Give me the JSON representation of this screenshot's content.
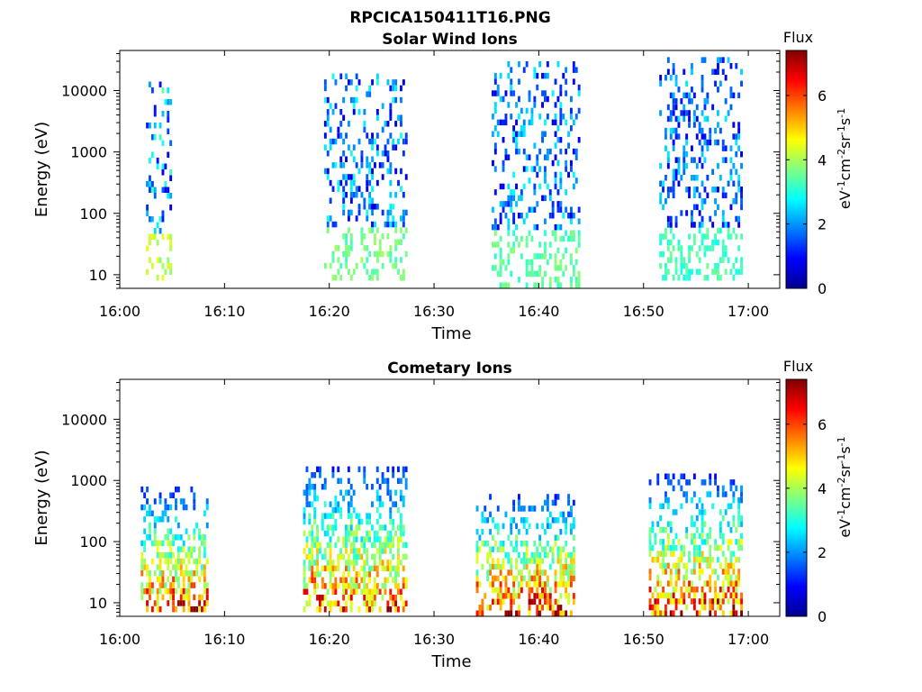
{
  "figure_title": "RPCICA150411T16.PNG",
  "colors": {
    "jet": [
      "#00008f",
      "#0000ff",
      "#0080ff",
      "#00ffff",
      "#80ff80",
      "#ffff00",
      "#ff8000",
      "#ff0000",
      "#800000"
    ]
  },
  "chart_data": [
    {
      "type": "heatmap",
      "title": "Solar Wind Ions",
      "xlabel": "Time",
      "ylabel": "Energy (eV)",
      "x_ticks": [
        "16:00",
        "16:10",
        "16:20",
        "16:30",
        "16:40",
        "16:50",
        "17:00"
      ],
      "y_ticks": [
        "10",
        "100",
        "1000",
        "10000"
      ],
      "y_scale": "log",
      "xlim_minutes": [
        0,
        63
      ],
      "ylim": [
        6,
        45000
      ],
      "colorbar": {
        "title": "Flux",
        "label": "eV-1cm-2sr-1s-1",
        "ticks": [
          "0",
          "2",
          "4",
          "6"
        ],
        "range": [
          0,
          7.4
        ]
      },
      "bursts": [
        {
          "t_start": 2.5,
          "t_end": 5.0,
          "e_min": 8,
          "e_max": 14000,
          "peak_flux": 4.6
        },
        {
          "t_start": 19.5,
          "t_end": 27.5,
          "e_min": 8,
          "e_max": 19000,
          "peak_flux": 4.0
        },
        {
          "t_start": 35.5,
          "t_end": 44.0,
          "e_min": 6,
          "e_max": 30000,
          "peak_flux": 3.8
        },
        {
          "t_start": 51.5,
          "t_end": 59.5,
          "e_min": 8,
          "e_max": 35000,
          "peak_flux": 3.6
        }
      ]
    },
    {
      "type": "heatmap",
      "title": "Cometary Ions",
      "xlabel": "Time",
      "ylabel": "Energy (eV)",
      "x_ticks": [
        "16:00",
        "16:10",
        "16:20",
        "16:30",
        "16:40",
        "16:50",
        "17:00"
      ],
      "y_ticks": [
        "10",
        "100",
        "1000",
        "10000"
      ],
      "y_scale": "log",
      "xlim_minutes": [
        0,
        63
      ],
      "ylim": [
        6,
        45000
      ],
      "colorbar": {
        "title": "Flux",
        "label": "eV-1cm-2sr-1s-1",
        "ticks": [
          "0",
          "2",
          "4",
          "6"
        ],
        "range": [
          0,
          7.4
        ]
      },
      "bursts": [
        {
          "t_start": 2.0,
          "t_end": 8.5,
          "e_min": 7,
          "e_max": 800,
          "peak_flux": 7.0
        },
        {
          "t_start": 17.5,
          "t_end": 27.5,
          "e_min": 7,
          "e_max": 1700,
          "peak_flux": 7.0
        },
        {
          "t_start": 34.0,
          "t_end": 43.5,
          "e_min": 6,
          "e_max": 600,
          "peak_flux": 7.4
        },
        {
          "t_start": 50.5,
          "t_end": 59.5,
          "e_min": 6,
          "e_max": 1300,
          "peak_flux": 7.2
        }
      ]
    }
  ]
}
